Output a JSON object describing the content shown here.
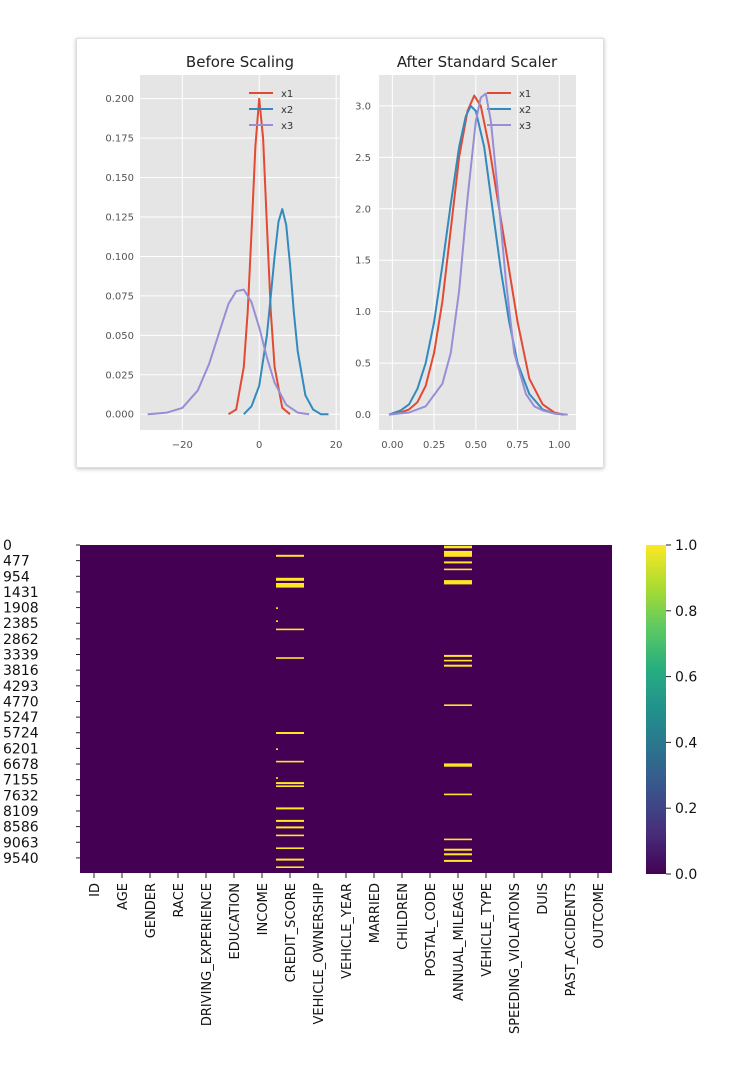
{
  "colors": {
    "x1": "#e24a33",
    "x2": "#348abd",
    "x3": "#988ed5",
    "panel_bg": "#e5e5e5",
    "heat_low": "#440154",
    "heat_high": "#fde725"
  },
  "chart_data": [
    {
      "type": "line",
      "title": "Before Scaling",
      "xlabel": "",
      "ylabel": "",
      "xlim": [
        -31,
        21
      ],
      "ylim": [
        -0.01,
        0.215
      ],
      "xticks": [
        -20,
        0,
        20
      ],
      "yticks": [
        0.0,
        0.025,
        0.05,
        0.075,
        0.1,
        0.125,
        0.15,
        0.175,
        0.2
      ],
      "ytick_labels": [
        "0.000",
        "0.025",
        "0.050",
        "0.075",
        "0.100",
        "0.125",
        "0.150",
        "0.175",
        "0.200"
      ],
      "xtick_labels": [
        "−20",
        "0",
        "20"
      ],
      "grid": true,
      "legend": "top-right",
      "series": [
        {
          "name": "x1",
          "x": [
            -8,
            -6,
            -4,
            -3,
            -2,
            -1,
            0,
            1,
            2,
            3,
            4,
            6,
            8
          ],
          "y": [
            0.0,
            0.003,
            0.03,
            0.065,
            0.115,
            0.17,
            0.2,
            0.175,
            0.12,
            0.065,
            0.03,
            0.004,
            0.0
          ]
        },
        {
          "name": "x2",
          "x": [
            -4,
            -2,
            0,
            2,
            3,
            4,
            5,
            6,
            7,
            8,
            9,
            10,
            12,
            14,
            16,
            18
          ],
          "y": [
            0.0,
            0.005,
            0.018,
            0.05,
            0.075,
            0.1,
            0.122,
            0.13,
            0.12,
            0.095,
            0.065,
            0.04,
            0.012,
            0.003,
            0.0,
            0.0
          ]
        },
        {
          "name": "x3",
          "x": [
            -29,
            -24,
            -20,
            -16,
            -13,
            -10,
            -8,
            -6,
            -4,
            -2,
            0,
            2,
            4,
            7,
            10,
            13
          ],
          "y": [
            0.0,
            0.001,
            0.004,
            0.015,
            0.032,
            0.055,
            0.07,
            0.078,
            0.079,
            0.071,
            0.055,
            0.036,
            0.02,
            0.006,
            0.001,
            0.0
          ]
        }
      ]
    },
    {
      "type": "line",
      "title": "After Standard Scaler",
      "xlabel": "",
      "ylabel": "",
      "xlim": [
        -0.08,
        1.1
      ],
      "ylim": [
        -0.15,
        3.3
      ],
      "xticks": [
        0.0,
        0.25,
        0.5,
        0.75,
        1.0
      ],
      "xtick_labels": [
        "0.00",
        "0.25",
        "0.50",
        "0.75",
        "1.00"
      ],
      "yticks": [
        0.0,
        0.5,
        1.0,
        1.5,
        2.0,
        2.5,
        3.0
      ],
      "ytick_labels": [
        "0.0",
        "0.5",
        "1.0",
        "1.5",
        "2.0",
        "2.5",
        "3.0"
      ],
      "grid": true,
      "legend": "top-right",
      "series": [
        {
          "name": "x1",
          "x": [
            -0.02,
            0.05,
            0.1,
            0.15,
            0.2,
            0.25,
            0.3,
            0.35,
            0.4,
            0.45,
            0.49,
            0.53,
            0.58,
            0.63,
            0.68,
            0.75,
            0.82,
            0.9,
            0.97,
            1.03
          ],
          "y": [
            0.0,
            0.02,
            0.05,
            0.12,
            0.28,
            0.6,
            1.1,
            1.8,
            2.5,
            2.95,
            3.1,
            3.0,
            2.6,
            2.1,
            1.6,
            0.9,
            0.35,
            0.1,
            0.02,
            0.0
          ]
        },
        {
          "name": "x2",
          "x": [
            -0.02,
            0.05,
            0.1,
            0.15,
            0.2,
            0.25,
            0.3,
            0.35,
            0.4,
            0.44,
            0.47,
            0.5,
            0.55,
            0.6,
            0.65,
            0.7,
            0.75,
            0.82,
            0.9,
            0.97,
            1.03
          ],
          "y": [
            0.0,
            0.04,
            0.1,
            0.25,
            0.5,
            0.9,
            1.45,
            2.05,
            2.6,
            2.9,
            3.0,
            2.95,
            2.6,
            2.0,
            1.4,
            0.9,
            0.5,
            0.2,
            0.05,
            0.01,
            0.0
          ]
        },
        {
          "name": "x3",
          "x": [
            -0.02,
            0.1,
            0.2,
            0.3,
            0.35,
            0.4,
            0.45,
            0.5,
            0.53,
            0.56,
            0.59,
            0.63,
            0.68,
            0.73,
            0.8,
            0.85,
            0.9,
            0.97,
            1.05
          ],
          "y": [
            0.0,
            0.02,
            0.08,
            0.3,
            0.6,
            1.2,
            2.1,
            2.85,
            3.08,
            3.12,
            2.85,
            2.2,
            1.3,
            0.6,
            0.2,
            0.08,
            0.04,
            0.01,
            0.0
          ]
        }
      ]
    },
    {
      "type": "heatmap",
      "title": "",
      "ytick_labels": [
        "0",
        "477",
        "954",
        "1431",
        "1908",
        "2385",
        "2862",
        "3339",
        "3816",
        "4293",
        "4770",
        "5247",
        "5724",
        "6201",
        "6678",
        "7155",
        "7632",
        "8109",
        "8586",
        "9063",
        "9540"
      ],
      "n_rows": 10000,
      "columns": [
        "ID",
        "AGE",
        "GENDER",
        "RACE",
        "DRIVING_EXPERIENCE",
        "EDUCATION",
        "INCOME",
        "CREDIT_SCORE",
        "VEHICLE_OWNERSHIP",
        "VEHICLE_YEAR",
        "MARRIED",
        "CHILDREN",
        "POSTAL_CODE",
        "ANNUAL_MILEAGE",
        "VEHICLE_TYPE",
        "SPEEDING_VIOLATIONS",
        "DUIS",
        "PAST_ACCIDENTS",
        "OUTCOME"
      ],
      "colorbar_ticks": [
        0.0,
        0.2,
        0.4,
        0.6,
        0.8,
        1.0
      ],
      "colorbar_tick_labels": [
        "0.0",
        "0.2",
        "0.4",
        "0.6",
        "0.8",
        "1.0"
      ],
      "missing_rows": {
        "CREDIT_SCORE": [
          [
            300,
            60
          ],
          [
            1000,
            90
          ],
          [
            1160,
            140
          ],
          [
            1900,
            20
          ],
          [
            2300,
            20
          ],
          [
            2550,
            50
          ],
          [
            3420,
            50
          ],
          [
            5700,
            60
          ],
          [
            6200,
            20
          ],
          [
            6580,
            40
          ],
          [
            7080,
            20
          ],
          [
            7230,
            60
          ],
          [
            7330,
            40
          ],
          [
            8000,
            60
          ],
          [
            8380,
            60
          ],
          [
            8580,
            60
          ],
          [
            8830,
            50
          ],
          [
            9220,
            50
          ],
          [
            9560,
            60
          ],
          [
            9800,
            40
          ]
        ],
        "ANNUAL_MILEAGE": [
          [
            20,
            80
          ],
          [
            180,
            180
          ],
          [
            500,
            60
          ],
          [
            720,
            40
          ],
          [
            1070,
            130
          ],
          [
            3350,
            60
          ],
          [
            3500,
            50
          ],
          [
            3650,
            60
          ],
          [
            4860,
            50
          ],
          [
            6660,
            100
          ],
          [
            7580,
            50
          ],
          [
            8950,
            50
          ],
          [
            9260,
            60
          ],
          [
            9400,
            60
          ],
          [
            9600,
            60
          ]
        ]
      }
    }
  ]
}
